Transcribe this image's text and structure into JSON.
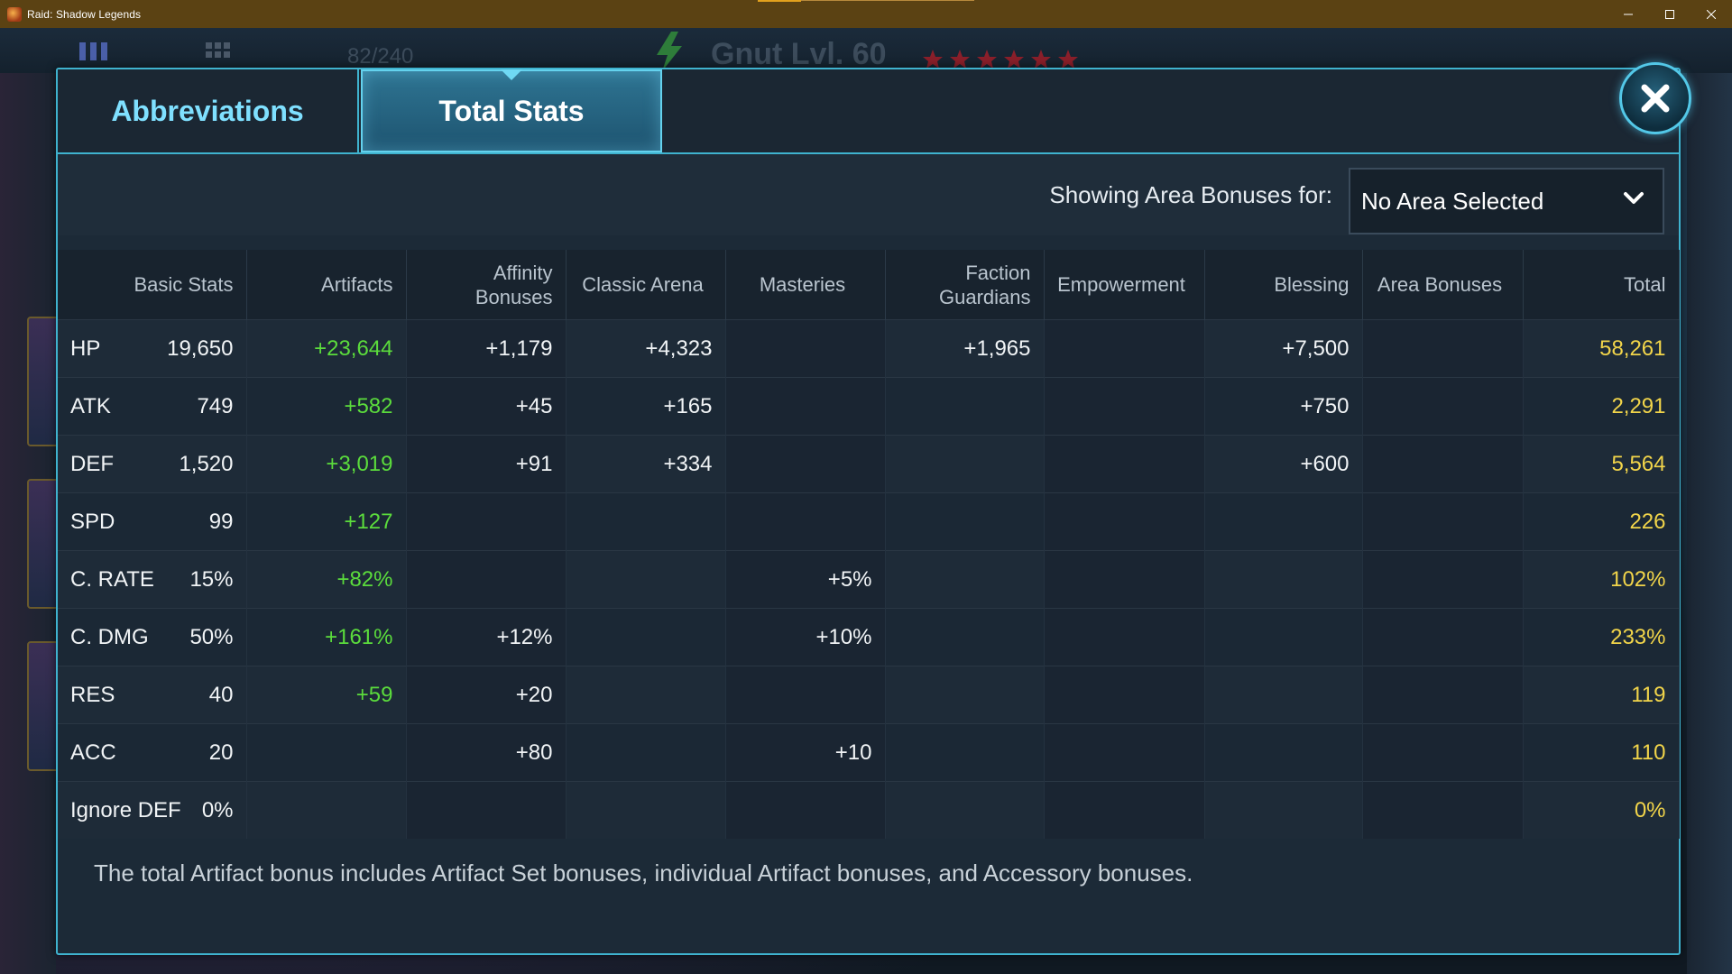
{
  "window": {
    "title": "Raid: Shadow Legends"
  },
  "background": {
    "counter": "82/240",
    "hero_title": "Gnut Lvl. 60"
  },
  "tabs": [
    {
      "label": "Abbreviations",
      "active": false
    },
    {
      "label": "Total Stats",
      "active": true
    }
  ],
  "filter": {
    "label": "Showing Area Bonuses for:",
    "selected": "No Area Selected"
  },
  "table": {
    "headers": [
      "Basic Stats",
      "Artifacts",
      "Affinity Bonuses",
      "Classic Arena",
      "Masteries",
      "Faction Guardians",
      "Empowerment",
      "Blessing",
      "Area Bonuses",
      "Total"
    ],
    "rows": [
      {
        "stat": "HP",
        "basic": "19,650",
        "artifacts": "+23,644",
        "affinity": "+1,179",
        "arena": "+4,323",
        "masteries": "",
        "faction": "+1,965",
        "empowerment": "",
        "blessing": "+7,500",
        "area": "",
        "total": "58,261"
      },
      {
        "stat": "ATK",
        "basic": "749",
        "artifacts": "+582",
        "affinity": "+45",
        "arena": "+165",
        "masteries": "",
        "faction": "",
        "empowerment": "",
        "blessing": "+750",
        "area": "",
        "total": "2,291"
      },
      {
        "stat": "DEF",
        "basic": "1,520",
        "artifacts": "+3,019",
        "affinity": "+91",
        "arena": "+334",
        "masteries": "",
        "faction": "",
        "empowerment": "",
        "blessing": "+600",
        "area": "",
        "total": "5,564"
      },
      {
        "stat": "SPD",
        "basic": "99",
        "artifacts": "+127",
        "affinity": "",
        "arena": "",
        "masteries": "",
        "faction": "",
        "empowerment": "",
        "blessing": "",
        "area": "",
        "total": "226"
      },
      {
        "stat": "C. RATE",
        "basic": "15%",
        "artifacts": "+82%",
        "affinity": "",
        "arena": "",
        "masteries": "+5%",
        "faction": "",
        "empowerment": "",
        "blessing": "",
        "area": "",
        "total": "102%"
      },
      {
        "stat": "C. DMG",
        "basic": "50%",
        "artifacts": "+161%",
        "affinity": "+12%",
        "arena": "",
        "masteries": "+10%",
        "faction": "",
        "empowerment": "",
        "blessing": "",
        "area": "",
        "total": "233%"
      },
      {
        "stat": "RES",
        "basic": "40",
        "artifacts": "+59",
        "affinity": "+20",
        "arena": "",
        "masteries": "",
        "faction": "",
        "empowerment": "",
        "blessing": "",
        "area": "",
        "total": "119"
      },
      {
        "stat": "ACC",
        "basic": "20",
        "artifacts": "",
        "affinity": "+80",
        "arena": "",
        "masteries": "+10",
        "faction": "",
        "empowerment": "",
        "blessing": "",
        "area": "",
        "total": "110"
      },
      {
        "stat": "Ignore DEF",
        "basic": "0%",
        "artifacts": "",
        "affinity": "",
        "arena": "",
        "masteries": "",
        "faction": "",
        "empowerment": "",
        "blessing": "",
        "area": "",
        "total": "0%"
      }
    ]
  },
  "footnote": "The total Artifact bonus includes Artifact Set bonuses, individual Artifact bonuses, and Accessory bonuses.",
  "colors": {
    "accent": "#3fb3cf",
    "artifact_green": "#5bdc3c",
    "total_gold": "#f2d54a",
    "tab_active_text": "#ffffff",
    "tab_inactive_text": "#7fe0ff"
  }
}
